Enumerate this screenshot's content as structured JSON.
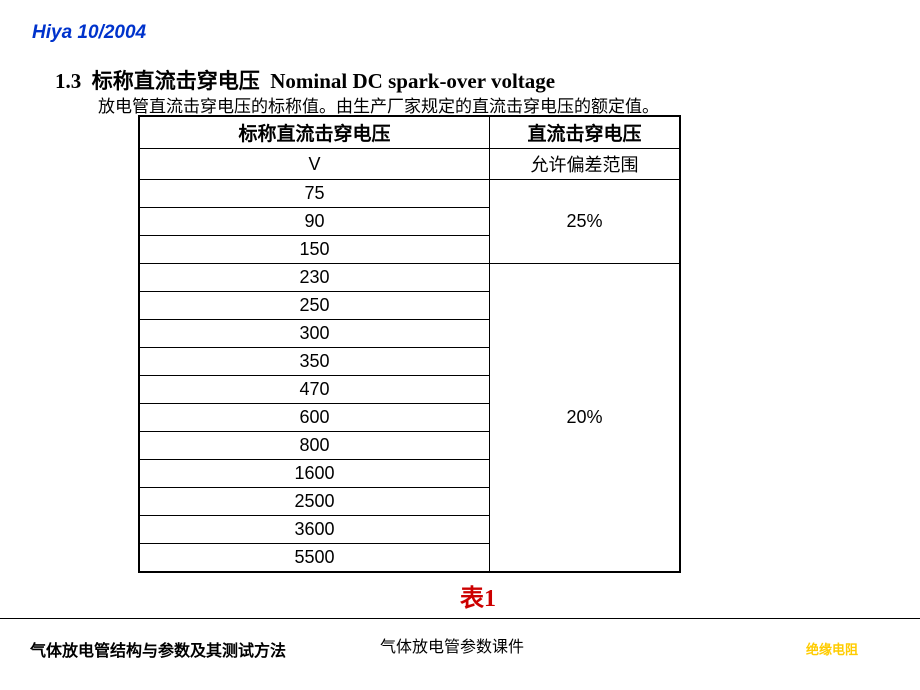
{
  "header": {
    "text": "Hiya 10/2004"
  },
  "section": {
    "number": "1.3",
    "title_cn": "标称直流击穿电压",
    "title_en": "Nominal DC spark-over voltage",
    "description": "放电管直流击穿电压的标称值。由生产厂家规定的直流击穿电压的额定值。"
  },
  "table": {
    "header_left": "标称直流击穿电压",
    "header_right": "直流击穿电压",
    "unit": "V",
    "tolerance_label": "允许偏差范围",
    "group1": {
      "values": [
        "75",
        "90",
        "150"
      ],
      "tolerance": "25%"
    },
    "group2": {
      "values": [
        "230",
        "250",
        "300",
        "350",
        "470",
        "600",
        "800",
        "1600",
        "2500",
        "3600",
        "5500"
      ],
      "tolerance": "20%"
    },
    "caption": "表1"
  },
  "footer": {
    "left": "气体放电管结构与参数及其测试方法",
    "center": "气体放电管参数课件",
    "right": "绝缘电阻"
  },
  "styling": {
    "header_color": "#0033cc",
    "caption_color": "#cc0000",
    "footer_right_color": "#ffcc00",
    "border_color": "#000000",
    "background": "#ffffff"
  }
}
